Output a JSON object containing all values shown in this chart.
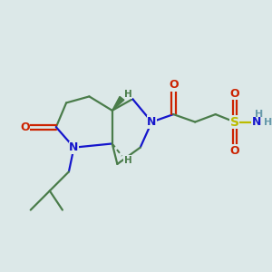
{
  "bg_color": "#dce8e8",
  "line_color": "#4a7c4a",
  "N_color": "#1515cc",
  "O_color": "#cc2200",
  "S_color": "#bbbb00",
  "H_color": "#6699aa",
  "bond_lw": 1.6,
  "fig_width": 3.0,
  "fig_height": 3.0,
  "dpi": 100,
  "xlim": [
    0,
    10
  ],
  "ylim": [
    0,
    10
  ]
}
